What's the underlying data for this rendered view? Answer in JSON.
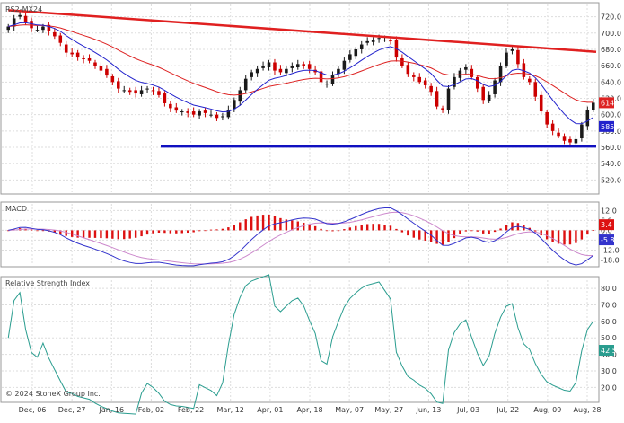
{
  "symbol": "RS2-MX24",
  "copyright": "© 2024 StoneX Group Inc.",
  "x_tick_labels": [
    "Dec, 06",
    "Dec, 27",
    "Jan, 16",
    "Feb, 02",
    "Feb, 22",
    "Mar, 12",
    "Apr, 01",
    "Apr, 18",
    "May, 07",
    "May, 27",
    "Jun, 13",
    "Jul, 03",
    "Jul, 22",
    "Aug, 09",
    "Aug, 28"
  ],
  "colors": {
    "up_candle": "#1a1a1a",
    "down_candle": "#cc0000",
    "fast_ma": "#2222cc",
    "slow_ma": "#dd2222",
    "trendline": "#e02020",
    "support": "#1010c0",
    "macd_line": "#3333cc",
    "signal_line": "#cc88cc",
    "histogram": "#dd1111",
    "rsi_line": "#2a9d8f"
  },
  "chart_data": [
    {
      "type": "candlestick",
      "name": "price",
      "ylim": [
        505,
        735
      ],
      "y_ticks": [
        720.0,
        700.0,
        680.0,
        660.0,
        640.0,
        620.0,
        600.0,
        580.0,
        560.0,
        540.0,
        520.0
      ],
      "close": [
        708,
        718,
        722,
        714,
        706,
        704,
        708,
        702,
        696,
        688,
        676,
        674,
        670,
        668,
        666,
        660,
        654,
        648,
        640,
        632,
        630,
        628,
        626,
        630,
        632,
        629,
        624,
        614,
        608,
        605,
        604,
        602,
        600,
        604,
        602,
        600,
        596,
        598,
        606,
        618,
        630,
        644,
        652,
        656,
        660,
        664,
        654,
        652,
        656,
        660,
        662,
        660,
        656,
        652,
        640,
        638,
        648,
        656,
        666,
        674,
        680,
        686,
        690,
        692,
        694,
        692,
        690,
        670,
        660,
        650,
        646,
        640,
        636,
        628,
        610,
        606,
        632,
        646,
        654,
        658,
        646,
        632,
        618,
        624,
        642,
        660,
        676,
        680,
        662,
        646,
        640,
        622,
        604,
        588,
        580,
        574,
        568,
        566,
        570,
        588,
        606,
        614.6
      ],
      "labels": {
        "close": "614.6",
        "fast_ma": "585.5"
      },
      "fast_ma_last": 585.5,
      "trendline": {
        "from": 728,
        "to": 677
      },
      "support": {
        "value": 561
      }
    },
    {
      "type": "histogram+lines",
      "name": "MACD",
      "title": "MACD",
      "ylim": [
        -21,
        16
      ],
      "y_ticks": [
        12.0,
        6.0,
        0.0,
        -6.0,
        -12.0,
        -18.0
      ],
      "macd_last": -5.8,
      "hist_last": 3.4,
      "labels": {
        "hist": "3.4",
        "macd": "-5.8"
      }
    },
    {
      "type": "line",
      "name": "RSI",
      "title": "Relative Strength Index",
      "ylim": [
        12,
        85
      ],
      "y_ticks": [
        80.0,
        70.0,
        60.0,
        50.0,
        40.0,
        30.0,
        20.0
      ],
      "last": 42.5,
      "labels": {
        "last": "42.5"
      }
    }
  ]
}
